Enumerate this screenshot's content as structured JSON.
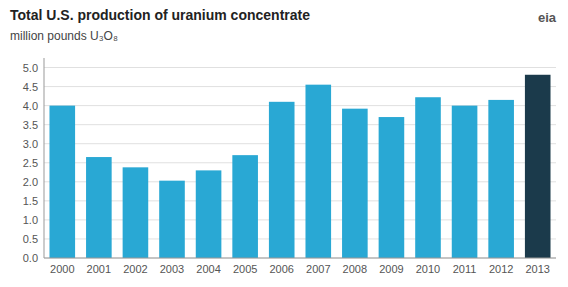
{
  "chart_data": {
    "type": "bar",
    "title": "Total U.S. production  of uranium concentrate",
    "y_label": "million pounds U₃O₈",
    "annotations": [
      "eia"
    ],
    "categories": [
      "2000",
      "2001",
      "2002",
      "2003",
      "2004",
      "2005",
      "2006",
      "2007",
      "2008",
      "2009",
      "2010",
      "2011",
      "2012",
      "2013"
    ],
    "values": [
      4.0,
      2.65,
      2.38,
      2.03,
      2.3,
      2.7,
      4.1,
      4.55,
      3.92,
      3.7,
      4.22,
      4.0,
      4.15,
      4.81
    ],
    "colors": [
      "#29a8d4",
      "#29a8d4",
      "#29a8d4",
      "#29a8d4",
      "#29a8d4",
      "#29a8d4",
      "#29a8d4",
      "#29a8d4",
      "#29a8d4",
      "#29a8d4",
      "#29a8d4",
      "#29a8d4",
      "#29a8d4",
      "#1b3a4b"
    ],
    "ylim": [
      0,
      5.25
    ],
    "yticks": [
      {
        "value": 0.0,
        "label": "0.0"
      },
      0.5,
      {
        "value": 1.0,
        "label": "1.0"
      },
      1.5,
      {
        "value": 2.0,
        "label": "2.0"
      },
      2.5,
      {
        "value": 3.0,
        "label": "3.0"
      },
      3.5,
      {
        "value": 4.0,
        "label": "4.0"
      },
      4.5,
      {
        "value": 5.0,
        "label": "5.0"
      }
    ],
    "grid": true
  }
}
